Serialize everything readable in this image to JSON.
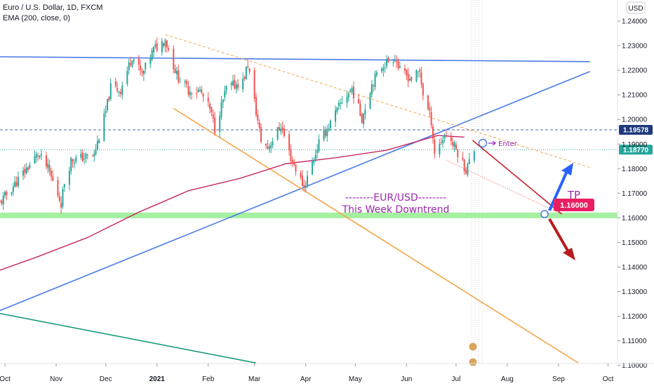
{
  "header": {
    "title": "Euro / U.S. Dollar, 1D, FXCM",
    "indicator": "EMA (200, close, 0)"
  },
  "currency_badge": "USD",
  "chart_data": {
    "type": "candlestick",
    "x_ticks": [
      "Oct",
      "Nov",
      "Dec",
      "2021",
      "Feb",
      "Mar",
      "Apr",
      "May",
      "Jun",
      "Jul",
      "Aug",
      "Sep",
      "Oct"
    ],
    "y_ticks": [
      "1.24000",
      "1.23000",
      "1.22000",
      "1.21000",
      "1.20000",
      "1.19000",
      "1.18000",
      "1.17000",
      "1.16000",
      "1.15000",
      "1.14000",
      "1.13000",
      "1.12000",
      "1.11000",
      "1.10000"
    ],
    "ylim": [
      1.0995,
      1.2465
    ],
    "price_path": [
      [
        "2020-09-28",
        1.166
      ],
      [
        "2020-10-09",
        1.1755
      ],
      [
        "2020-10-21",
        1.186
      ],
      [
        "2020-10-27",
        1.18
      ],
      [
        "2020-11-04",
        1.166
      ],
      [
        "2020-11-06",
        1.1745
      ],
      [
        "2020-11-10",
        1.1835
      ],
      [
        "2020-11-24",
        1.1855
      ],
      [
        "2020-12-01",
        1.203
      ],
      [
        "2020-12-04",
        1.213
      ],
      [
        "2020-12-10",
        1.212
      ],
      [
        "2020-12-17",
        1.226
      ],
      [
        "2020-12-23",
        1.218
      ],
      [
        "2020-12-30",
        1.2285
      ],
      [
        "2021-01-06",
        1.2325
      ],
      [
        "2021-01-13",
        1.218
      ],
      [
        "2021-01-20",
        1.212
      ],
      [
        "2021-01-27",
        1.2115
      ],
      [
        "2021-02-02",
        1.204
      ],
      [
        "2021-02-05",
        1.1965
      ],
      [
        "2021-02-12",
        1.2125
      ],
      [
        "2021-02-22",
        1.2155
      ],
      [
        "2021-02-25",
        1.2225
      ],
      [
        "2021-03-05",
        1.1915
      ],
      [
        "2021-03-09",
        1.1885
      ],
      [
        "2021-03-17",
        1.1975
      ],
      [
        "2021-03-23",
        1.1845
      ],
      [
        "2021-03-31",
        1.1725
      ],
      [
        "2021-04-09",
        1.1905
      ],
      [
        "2021-04-16",
        1.1985
      ],
      [
        "2021-04-23",
        1.2075
      ],
      [
        "2021-04-29",
        1.2125
      ],
      [
        "2021-05-05",
        1.2005
      ],
      [
        "2021-05-11",
        1.2145
      ],
      [
        "2021-05-18",
        1.2225
      ],
      [
        "2021-05-25",
        1.2255
      ],
      [
        "2021-05-28",
        1.2195
      ],
      [
        "2021-06-04",
        1.2165
      ],
      [
        "2021-06-09",
        1.2195
      ],
      [
        "2021-06-11",
        1.2105
      ],
      [
        "2021-06-16",
        1.1995
      ],
      [
        "2021-06-18",
        1.1865
      ],
      [
        "2021-06-25",
        1.1945
      ],
      [
        "2021-07-02",
        1.1865
      ],
      [
        "2021-07-07",
        1.1795
      ],
      [
        "2021-07-12",
        1.1877
      ]
    ],
    "ema200": [
      [
        "2020-09-25",
        1.138
      ],
      [
        "2020-10-20",
        1.144
      ],
      [
        "2020-11-20",
        1.152
      ],
      [
        "2020-12-20",
        1.162
      ],
      [
        "2021-01-20",
        1.171
      ],
      [
        "2021-02-20",
        1.176
      ],
      [
        "2021-03-20",
        1.182
      ],
      [
        "2021-04-20",
        1.1845
      ],
      [
        "2021-05-20",
        1.1875
      ],
      [
        "2021-06-20",
        1.1935
      ],
      [
        "2021-07-06",
        1.1928
      ]
    ],
    "lines": [
      {
        "name": "upper-trendline",
        "color": "#4a7be6",
        "points": [
          [
            "2020-09-25",
            1.2255
          ],
          [
            "2021-09-20",
            1.2235
          ]
        ]
      },
      {
        "name": "rising-trendline",
        "color": "#4a7be6",
        "points": [
          [
            "2020-09-25",
            1.1215
          ],
          [
            "2021-09-20",
            1.2195
          ]
        ]
      },
      {
        "name": "teal-trendline",
        "color": "#1d9980",
        "points": [
          [
            "2020-09-25",
            1.1215
          ],
          [
            "2021-03-02",
            1.101
          ]
        ]
      },
      {
        "name": "orange-support-line",
        "color": "#f5a64a",
        "points": [
          [
            "2021-01-11",
            1.2045
          ],
          [
            "2021-09-13",
            1.101
          ]
        ]
      },
      {
        "name": "orange-dashed-line",
        "color": "#f5a64a",
        "dashed": true,
        "points": [
          [
            "2021-01-06",
            1.2345
          ],
          [
            "2021-09-20",
            1.1805
          ]
        ]
      },
      {
        "name": "pink-dotted-line",
        "color": "#ef5350",
        "dotted": true,
        "points": [
          [
            "2021-06-25",
            1.1835
          ],
          [
            "2021-09-03",
            1.1615
          ]
        ]
      },
      {
        "name": "projection-line",
        "color": "#c8232c",
        "points": [
          [
            "2021-07-11",
            1.1915
          ],
          [
            "2021-09-03",
            1.1615
          ]
        ]
      }
    ],
    "levels": [
      {
        "value": 1.19578,
        "label": "1.19578",
        "color": "#4a6cb5",
        "tag_color": "#1e3a7b",
        "dashed": true
      },
      {
        "value": 1.1877,
        "label": "1.18770",
        "color": "#26a69a",
        "tag_color": "#26a69a",
        "dotted": true
      }
    ],
    "support_zone": {
      "value": 1.161,
      "color": "#a5f0a0"
    },
    "colors": {
      "up": "#26a69a",
      "down": "#ef5350",
      "ema": "#c2185b",
      "annotation": "#9c27b0",
      "tp_badge": "#e91e63"
    },
    "annotations": {
      "title_line": "--------EUR/USD--------",
      "subtitle_line": "This Week Downtrend",
      "enter": "Enter",
      "tp": "TP",
      "tp_value": "1.16000"
    }
  }
}
